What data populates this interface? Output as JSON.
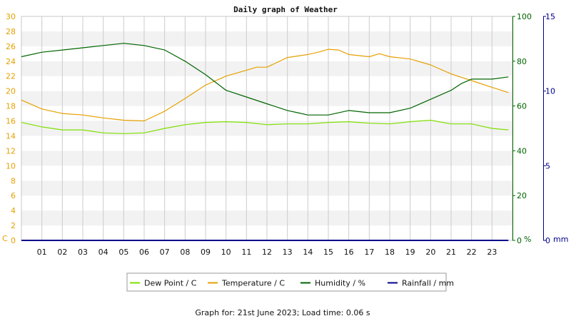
{
  "chart_data": {
    "type": "line",
    "title": "Daily graph of Weather",
    "footer": "Graph for: 21st June 2023; Load time: 0.06 s",
    "x_tick_labels": [
      "01",
      "02",
      "03",
      "04",
      "05",
      "06",
      "07",
      "08",
      "09",
      "10",
      "11",
      "12",
      "13",
      "14",
      "15",
      "16",
      "17",
      "18",
      "19",
      "20",
      "21",
      "22",
      "23"
    ],
    "x_range_hours": [
      0,
      24
    ],
    "grid": true,
    "legend_placement": "bottom-center",
    "axes": {
      "temperature": {
        "unit": "C",
        "range": [
          0,
          30
        ],
        "ticks": [
          0,
          2,
          4,
          6,
          8,
          10,
          12,
          14,
          16,
          18,
          20,
          22,
          24,
          26,
          28,
          30
        ],
        "color": "#e6a000"
      },
      "humidity": {
        "unit": "%",
        "range": [
          0,
          100
        ],
        "ticks": [
          0,
          20,
          40,
          60,
          80,
          100
        ],
        "color": "#006400"
      },
      "rainfall": {
        "unit": "mm",
        "range": [
          0,
          15
        ],
        "ticks": [
          0,
          5,
          10,
          15
        ],
        "color": "#00008b"
      }
    },
    "series": [
      {
        "name": "Dew Point / C",
        "color": "#7ee000",
        "axis": "temperature",
        "x": [
          0,
          1,
          2,
          3,
          4,
          5,
          6,
          7,
          8,
          9,
          10,
          11,
          12,
          13,
          14,
          15,
          16,
          17,
          18,
          19,
          20,
          21,
          22,
          23,
          23.8
        ],
        "y": [
          15.8,
          15.2,
          14.8,
          14.8,
          14.4,
          14.3,
          14.4,
          15.0,
          15.5,
          15.8,
          15.9,
          15.8,
          15.5,
          15.6,
          15.6,
          15.8,
          15.9,
          15.7,
          15.6,
          15.9,
          16.1,
          15.6,
          15.6,
          15.0,
          14.8
        ]
      },
      {
        "name": "Temperature / C",
        "color": "#e6a000",
        "axis": "temperature",
        "x": [
          0,
          1,
          2,
          3,
          4,
          5,
          6,
          7,
          8,
          9,
          10,
          11,
          11.5,
          12,
          13,
          14,
          14.5,
          15,
          15.5,
          16,
          17,
          17.5,
          18,
          19,
          20,
          21,
          22,
          23,
          23.8
        ],
        "y": [
          18.8,
          17.6,
          17.0,
          16.8,
          16.4,
          16.1,
          16.0,
          17.3,
          19.0,
          20.8,
          22.0,
          22.8,
          23.2,
          23.2,
          24.5,
          24.9,
          25.2,
          25.6,
          25.5,
          24.9,
          24.6,
          25.0,
          24.6,
          24.3,
          23.5,
          22.3,
          21.4,
          20.5,
          19.8
        ]
      },
      {
        "name": "Humidity / %",
        "color": "#006400",
        "axis": "humidity",
        "x": [
          0,
          1,
          2,
          3,
          4,
          5,
          6,
          7,
          8,
          9,
          10,
          11,
          12,
          13,
          13.5,
          14,
          15,
          16,
          17,
          18,
          19,
          20,
          21,
          21.5,
          22,
          23,
          23.8
        ],
        "y": [
          82,
          84,
          85,
          86,
          87,
          88,
          87,
          85,
          80,
          74,
          67,
          64,
          61,
          58,
          57,
          56,
          56,
          58,
          57,
          57,
          59,
          63,
          67,
          70,
          72,
          72,
          73
        ]
      },
      {
        "name": "Rainfall / mm",
        "color": "#00008b",
        "axis": "rainfall",
        "x": [
          0,
          23.8
        ],
        "y": [
          0,
          0
        ]
      }
    ]
  }
}
